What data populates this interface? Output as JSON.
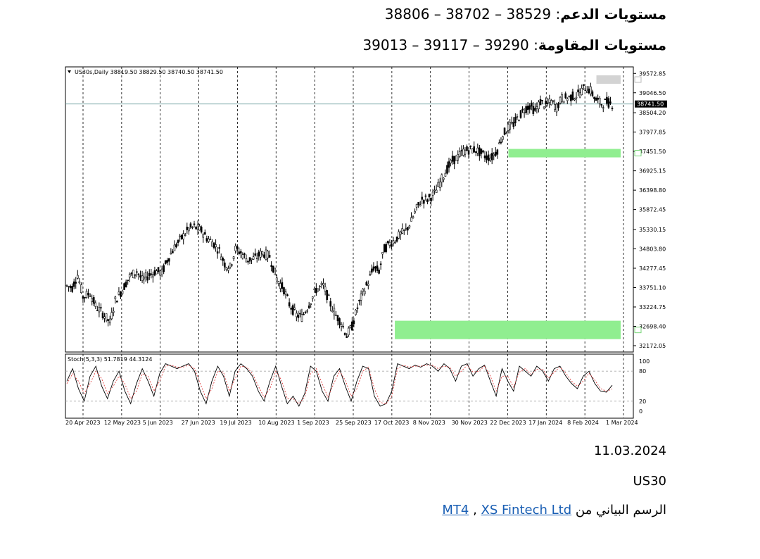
{
  "support": {
    "label": "مستويات الدعم",
    "values": "38806 – 38702 – 38529"
  },
  "resistance": {
    "label": "مستويات المقاومة",
    "values": "39013 – 39117 – 39290"
  },
  "date": "11.03.2024",
  "symbol": "US30",
  "source": {
    "prefix": "الرسم البياني من",
    "link1": "MT4",
    "sep": " , ",
    "link2": "XS Fintech Ltd"
  },
  "chart_data": [
    {
      "type": "candlestick",
      "title": "US30s,Daily",
      "ohlc_readout": "38819.50 38829.50 38740.50 38741.50",
      "last_price": "38741.50",
      "ylim": [
        32000,
        39750
      ],
      "yticks": [
        "39572.85",
        "39046.50",
        "38504.20",
        "37977.85",
        "37451.50",
        "36925.15",
        "36398.80",
        "35872.45",
        "35330.15",
        "34803.80",
        "34277.45",
        "33751.10",
        "33224.75",
        "32698.40",
        "32172.05"
      ],
      "xlabels": [
        "20 Apr 2023",
        "12 May 2023",
        "5 Jun 2023",
        "27 Jun 2023",
        "19 Jul 2023",
        "10 Aug 2023",
        "1 Sep 2023",
        "25 Sep 2023",
        "17 Oct 2023",
        "8 Nov 2023",
        "30 Nov 2023",
        "22 Dec 2023",
        "17 Jan 2024",
        "8 Feb 2024",
        "1 Mar 2024"
      ],
      "price_path": [
        [
          0,
          33800
        ],
        [
          6,
          33750
        ],
        [
          12,
          34100
        ],
        [
          18,
          33500
        ],
        [
          26,
          33600
        ],
        [
          32,
          33250
        ],
        [
          40,
          33050
        ],
        [
          48,
          32800
        ],
        [
          54,
          33400
        ],
        [
          62,
          33700
        ],
        [
          70,
          34050
        ],
        [
          78,
          34200
        ],
        [
          84,
          33950
        ],
        [
          92,
          34100
        ],
        [
          100,
          34200
        ],
        [
          106,
          34150
        ],
        [
          112,
          34500
        ],
        [
          120,
          34850
        ],
        [
          128,
          35100
        ],
        [
          136,
          35350
        ],
        [
          142,
          35400
        ],
        [
          150,
          35300
        ],
        [
          156,
          35100
        ],
        [
          162,
          35000
        ],
        [
          170,
          34750
        ],
        [
          176,
          34400
        ],
        [
          182,
          34300
        ],
        [
          188,
          34800
        ],
        [
          194,
          34700
        ],
        [
          202,
          34500
        ],
        [
          210,
          34550
        ],
        [
          218,
          34700
        ],
        [
          226,
          34600
        ],
        [
          234,
          34000
        ],
        [
          242,
          33700
        ],
        [
          248,
          33300
        ],
        [
          256,
          33000
        ],
        [
          262,
          32950
        ],
        [
          270,
          33300
        ],
        [
          278,
          33700
        ],
        [
          286,
          33800
        ],
        [
          294,
          33300
        ],
        [
          300,
          33000
        ],
        [
          306,
          32800
        ],
        [
          312,
          32450
        ],
        [
          318,
          32700
        ],
        [
          324,
          33200
        ],
        [
          330,
          33600
        ],
        [
          336,
          33900
        ],
        [
          342,
          34300
        ],
        [
          348,
          34200
        ],
        [
          354,
          34800
        ],
        [
          360,
          34950
        ],
        [
          366,
          35050
        ],
        [
          372,
          35200
        ],
        [
          378,
          35300
        ],
        [
          384,
          35550
        ],
        [
          390,
          35900
        ],
        [
          396,
          36150
        ],
        [
          402,
          36150
        ],
        [
          410,
          36300
        ],
        [
          416,
          36600
        ],
        [
          422,
          36900
        ],
        [
          430,
          37200
        ],
        [
          436,
          37300
        ],
        [
          442,
          37450
        ],
        [
          448,
          37500
        ],
        [
          456,
          37500
        ],
        [
          462,
          37400
        ],
        [
          468,
          37300
        ],
        [
          474,
          37300
        ],
        [
          480,
          37500
        ],
        [
          486,
          37900
        ],
        [
          492,
          38100
        ],
        [
          498,
          38200
        ],
        [
          504,
          38400
        ],
        [
          510,
          38600
        ],
        [
          516,
          38700
        ],
        [
          522,
          38550
        ],
        [
          528,
          38800
        ],
        [
          534,
          38700
        ],
        [
          540,
          38800
        ],
        [
          546,
          38650
        ],
        [
          552,
          38900
        ],
        [
          558,
          38900
        ],
        [
          564,
          38950
        ],
        [
          570,
          39000
        ],
        [
          578,
          39200
        ],
        [
          584,
          39100
        ],
        [
          590,
          38850
        ],
        [
          596,
          38750
        ],
        [
          602,
          38800
        ],
        [
          608,
          38741
        ]
      ],
      "zones": [
        {
          "kind": "supply",
          "from": 39290,
          "to": 39520
        },
        {
          "kind": "demand",
          "from": 37290,
          "to": 37520
        },
        {
          "kind": "demand",
          "from": 32350,
          "to": 32850
        }
      ]
    },
    {
      "type": "line",
      "title": "Stoch(5,3,3) 51.7819 44.3124",
      "ylim": [
        0,
        100
      ],
      "yticks": [
        "100",
        "80",
        "20",
        "0"
      ],
      "series": [
        {
          "name": "main",
          "values": [
            60,
            85,
            45,
            20,
            70,
            90,
            50,
            25,
            60,
            80,
            40,
            15,
            55,
            85,
            60,
            30,
            75,
            95,
            90,
            85,
            90,
            95,
            80,
            40,
            15,
            60,
            90,
            70,
            30,
            80,
            95,
            85,
            70,
            40,
            20,
            60,
            90,
            50,
            15,
            30,
            10,
            35,
            90,
            80,
            40,
            20,
            70,
            85,
            50,
            20,
            60,
            90,
            85,
            30,
            10,
            15,
            40,
            95,
            90,
            85,
            92,
            88,
            95,
            90,
            80,
            95,
            85,
            60,
            90,
            95,
            70,
            85,
            92,
            60,
            30,
            85,
            60,
            40,
            90,
            80,
            70,
            90,
            80,
            60,
            85,
            90,
            70,
            55,
            45,
            70,
            80,
            55,
            40,
            38,
            51.78
          ]
        },
        {
          "name": "signal",
          "values": [
            55,
            75,
            60,
            35,
            55,
            80,
            65,
            35,
            50,
            70,
            55,
            25,
            40,
            75,
            70,
            40,
            60,
            90,
            92,
            88,
            88,
            92,
            85,
            55,
            25,
            45,
            80,
            78,
            40,
            65,
            90,
            88,
            75,
            50,
            28,
            45,
            80,
            62,
            25,
            25,
            15,
            28,
            75,
            85,
            55,
            28,
            55,
            80,
            62,
            30,
            45,
            80,
            88,
            45,
            18,
            14,
            30,
            85,
            92,
            88,
            90,
            90,
            92,
            92,
            85,
            90,
            88,
            70,
            80,
            92,
            78,
            80,
            90,
            70,
            40,
            70,
            70,
            48,
            78,
            85,
            74,
            84,
            84,
            66,
            78,
            88,
            76,
            60,
            50,
            60,
            76,
            62,
            45,
            40,
            44.31
          ]
        }
      ]
    }
  ]
}
